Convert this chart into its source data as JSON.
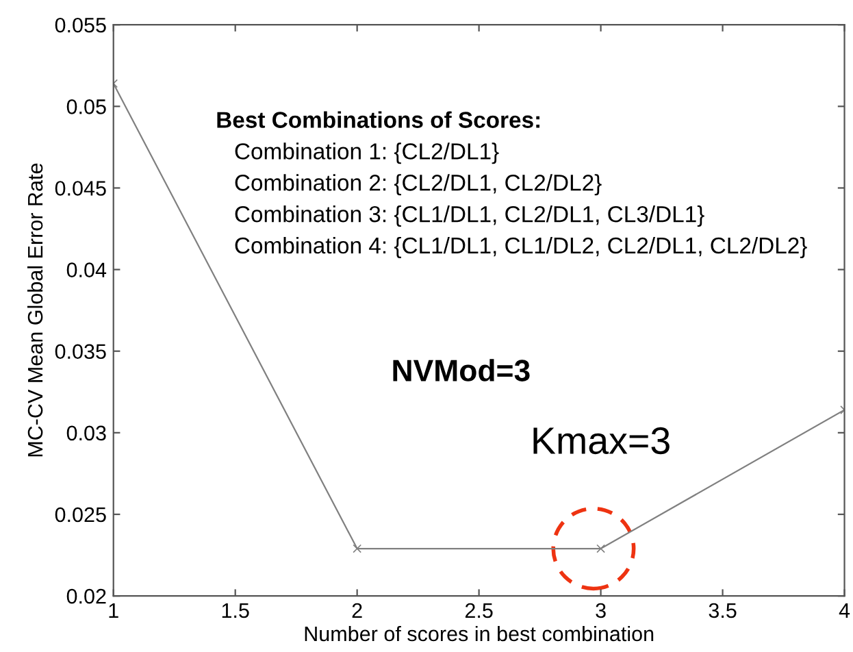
{
  "chart_data": {
    "type": "line",
    "xlabel": "Number of scores in best combination",
    "ylabel": "MC-CV Mean Global Error Rate",
    "x": [
      1,
      2,
      3,
      4
    ],
    "series": [
      {
        "color": "#808080",
        "values": [
          0.0514,
          0.0229,
          0.0229,
          0.0314
        ]
      }
    ],
    "marker": "cross",
    "line_style": "solid",
    "xlim": [
      1,
      4
    ],
    "xticks": [
      1,
      1.5,
      2,
      2.5,
      3,
      3.5,
      4
    ],
    "ylim": [
      0.02,
      0.055
    ],
    "yticks": [
      0.02,
      0.025,
      0.03,
      0.035,
      0.04,
      0.045,
      0.05,
      0.055
    ],
    "grid": false,
    "legend": false,
    "annotations": [
      "Best Combinations of Scores:",
      "Combination 1: {CL2/DL1}",
      "Combination 2: {CL2/DL1, CL2/DL2}",
      "Combination 3: {CL1/DL1, CL2/DL1, CL3/DL1}",
      "Combination 4: {CL1/DL1, CL1/DL2, CL2/DL1, CL2/DL2}",
      "NVMod=3",
      {
        "text": "Kmax=3",
        "x": 3,
        "y": 0.0229
      }
    ]
  }
}
